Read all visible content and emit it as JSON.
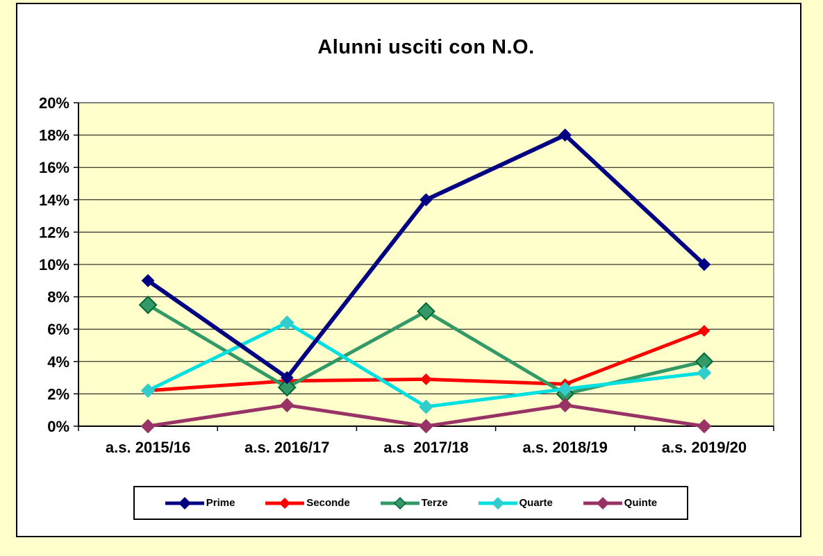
{
  "page": {
    "background": "#FFFFCC"
  },
  "chart": {
    "container_background": "#FFFFFF",
    "plot_background": "#FFFFCC",
    "gridline_color": "#000000",
    "plot_top_border_color": "#808080",
    "plot_right_border_color": "#808080",
    "axis_color": "#000000"
  },
  "chart_data": {
    "type": "line",
    "title": "Alunni usciti con N.O.",
    "xlabel": "",
    "ylabel": "",
    "categories": [
      "a.s. 2015/16",
      "a.s. 2016/17",
      "a.s  2017/18",
      "a.s. 2018/19",
      "a.s. 2019/20"
    ],
    "y_tick_labels": [
      "0%",
      "2%",
      "4%",
      "6%",
      "8%",
      "10%",
      "12%",
      "14%",
      "16%",
      "18%",
      "20%"
    ],
    "ylim": [
      0,
      20
    ],
    "y_tick_step": 2,
    "grid": true,
    "legend_position": "bottom",
    "series": [
      {
        "name": "Prime",
        "color": "#000080",
        "marker_color": "#000080",
        "marker_stroke": "#000080",
        "values": [
          9,
          3,
          14,
          18,
          10
        ],
        "line_width": 6,
        "marker_size": 8
      },
      {
        "name": "Seconde",
        "color": "#FF0000",
        "marker_color": "#FF0000",
        "marker_stroke": "#FF0000",
        "values": [
          2.2,
          2.8,
          2.9,
          2.6,
          5.9
        ],
        "line_width": 5,
        "marker_size": 7
      },
      {
        "name": "Terze",
        "color": "#339966",
        "marker_color": "#339966",
        "marker_stroke": "#006633",
        "values": [
          7.5,
          2.4,
          7.1,
          2,
          4
        ],
        "line_width": 5,
        "marker_size": 12
      },
      {
        "name": "Quarte",
        "color": "#00E0E0",
        "marker_color": "#33CCCC",
        "marker_stroke": "#33CCCC",
        "values": [
          2.2,
          6.4,
          1.2,
          2.3,
          3.3
        ],
        "line_width": 5,
        "marker_size": 9
      },
      {
        "name": "Quinte",
        "color": "#993366",
        "marker_color": "#993366",
        "marker_stroke": "#993366",
        "values": [
          0,
          1.3,
          0,
          1.3,
          0
        ],
        "line_width": 5,
        "marker_size": 9
      }
    ],
    "draw_order": [
      1,
      2,
      3,
      4,
      0
    ]
  }
}
